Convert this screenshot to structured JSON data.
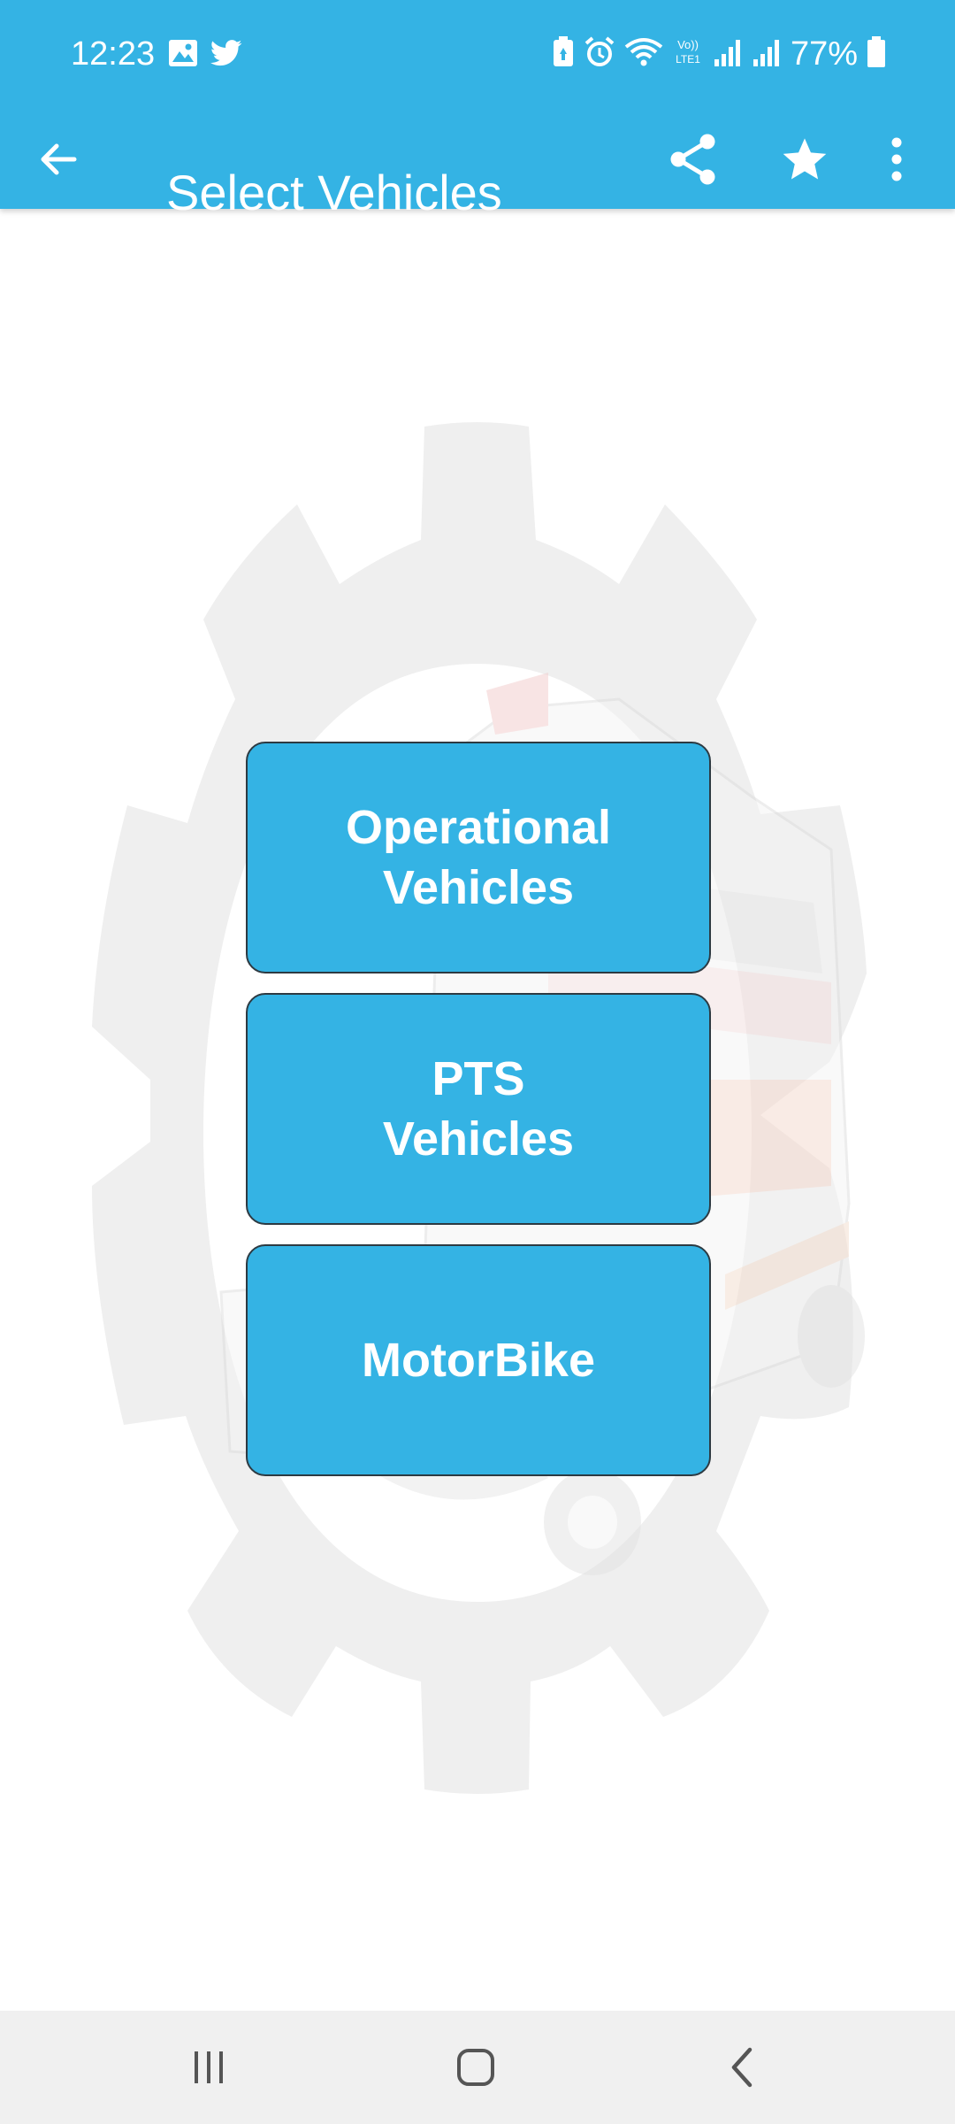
{
  "status_bar": {
    "time": "12:23",
    "battery": "77%",
    "left_icons": [
      "image-icon",
      "twitter-icon"
    ],
    "right_icons": [
      "battery-saver-icon",
      "alarm-icon",
      "wifi-icon",
      "volte-icon",
      "signal-icon",
      "signal-icon",
      "battery-icon"
    ]
  },
  "toolbar": {
    "title": "Select Vehicles",
    "icons": [
      "back-arrow-icon",
      "share-icon",
      "star-icon",
      "more-vert-icon"
    ]
  },
  "menu": {
    "items": [
      {
        "label": "Operational\nVehicles"
      },
      {
        "label": "PTS\nVehicles"
      },
      {
        "label": "MotorBike"
      }
    ]
  },
  "nav_bar": {
    "icons": [
      "recents-icon",
      "home-icon",
      "back-icon"
    ]
  },
  "colors": {
    "primary": "#34b3e4",
    "button_border": "#2d3a42",
    "background": "#ffffff",
    "watermark": "#efefef",
    "nav_background": "#f0f0f0"
  }
}
